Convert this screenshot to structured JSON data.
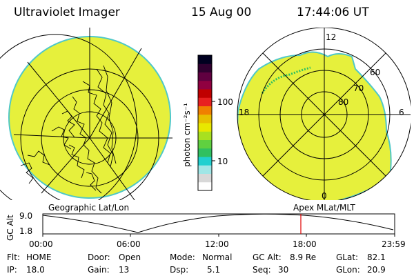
{
  "header": {
    "instrument": "Ultraviolet Imager",
    "date": "15 Aug 00",
    "time": "17:44:06 UT"
  },
  "colorbar": {
    "unit_label": "photon cm⁻²s⁻¹",
    "tick_100": "100",
    "tick_10": "10",
    "colors": [
      "#ffffff",
      "#d8d8d8",
      "#a0e6e6",
      "#20d0d0",
      "#30c060",
      "#60d040",
      "#a8e020",
      "#e8e800",
      "#e8c000",
      "#f08000",
      "#e82020",
      "#c00000",
      "#900040",
      "#600040",
      "#300030",
      "#000020"
    ]
  },
  "geo_map": {
    "label": "Geographic Lat/Lon",
    "fill_color": "#e6f03c"
  },
  "polar_map": {
    "label": "Apex MLat/MLT",
    "mlt_12": "12",
    "mlt_18": "18",
    "mlt_6": "6",
    "mlt_0": "0",
    "lat_60": "60",
    "lat_70": "70",
    "lat_80": "80"
  },
  "altitude_plot": {
    "ylabel": "GC Alt",
    "ytick_top": "9.0",
    "ytick_bottom": "1.8",
    "xticks": [
      "00:00",
      "06:00",
      "12:00",
      "18:00",
      "23:59"
    ],
    "current_time_color": "#e00000"
  },
  "status": {
    "flt_label": "Flt:",
    "flt_value": "HOME",
    "ip_label": "IP:",
    "ip_value": "18.0",
    "door_label": "Door:",
    "door_value": "Open",
    "gain_label": "Gain:",
    "gain_value": "13",
    "mode_label": "Mode:",
    "mode_value": "Normal",
    "dsp_label": "Dsp:",
    "dsp_value": "5.1",
    "gcalt_label": "GC Alt:",
    "gcalt_value": "8.9 Re",
    "seq_label": "Seq:",
    "seq_value": "30",
    "glat_label": "GLat:",
    "glat_value": "82.1",
    "glon_label": "GLon:",
    "glon_value": "20.9"
  }
}
